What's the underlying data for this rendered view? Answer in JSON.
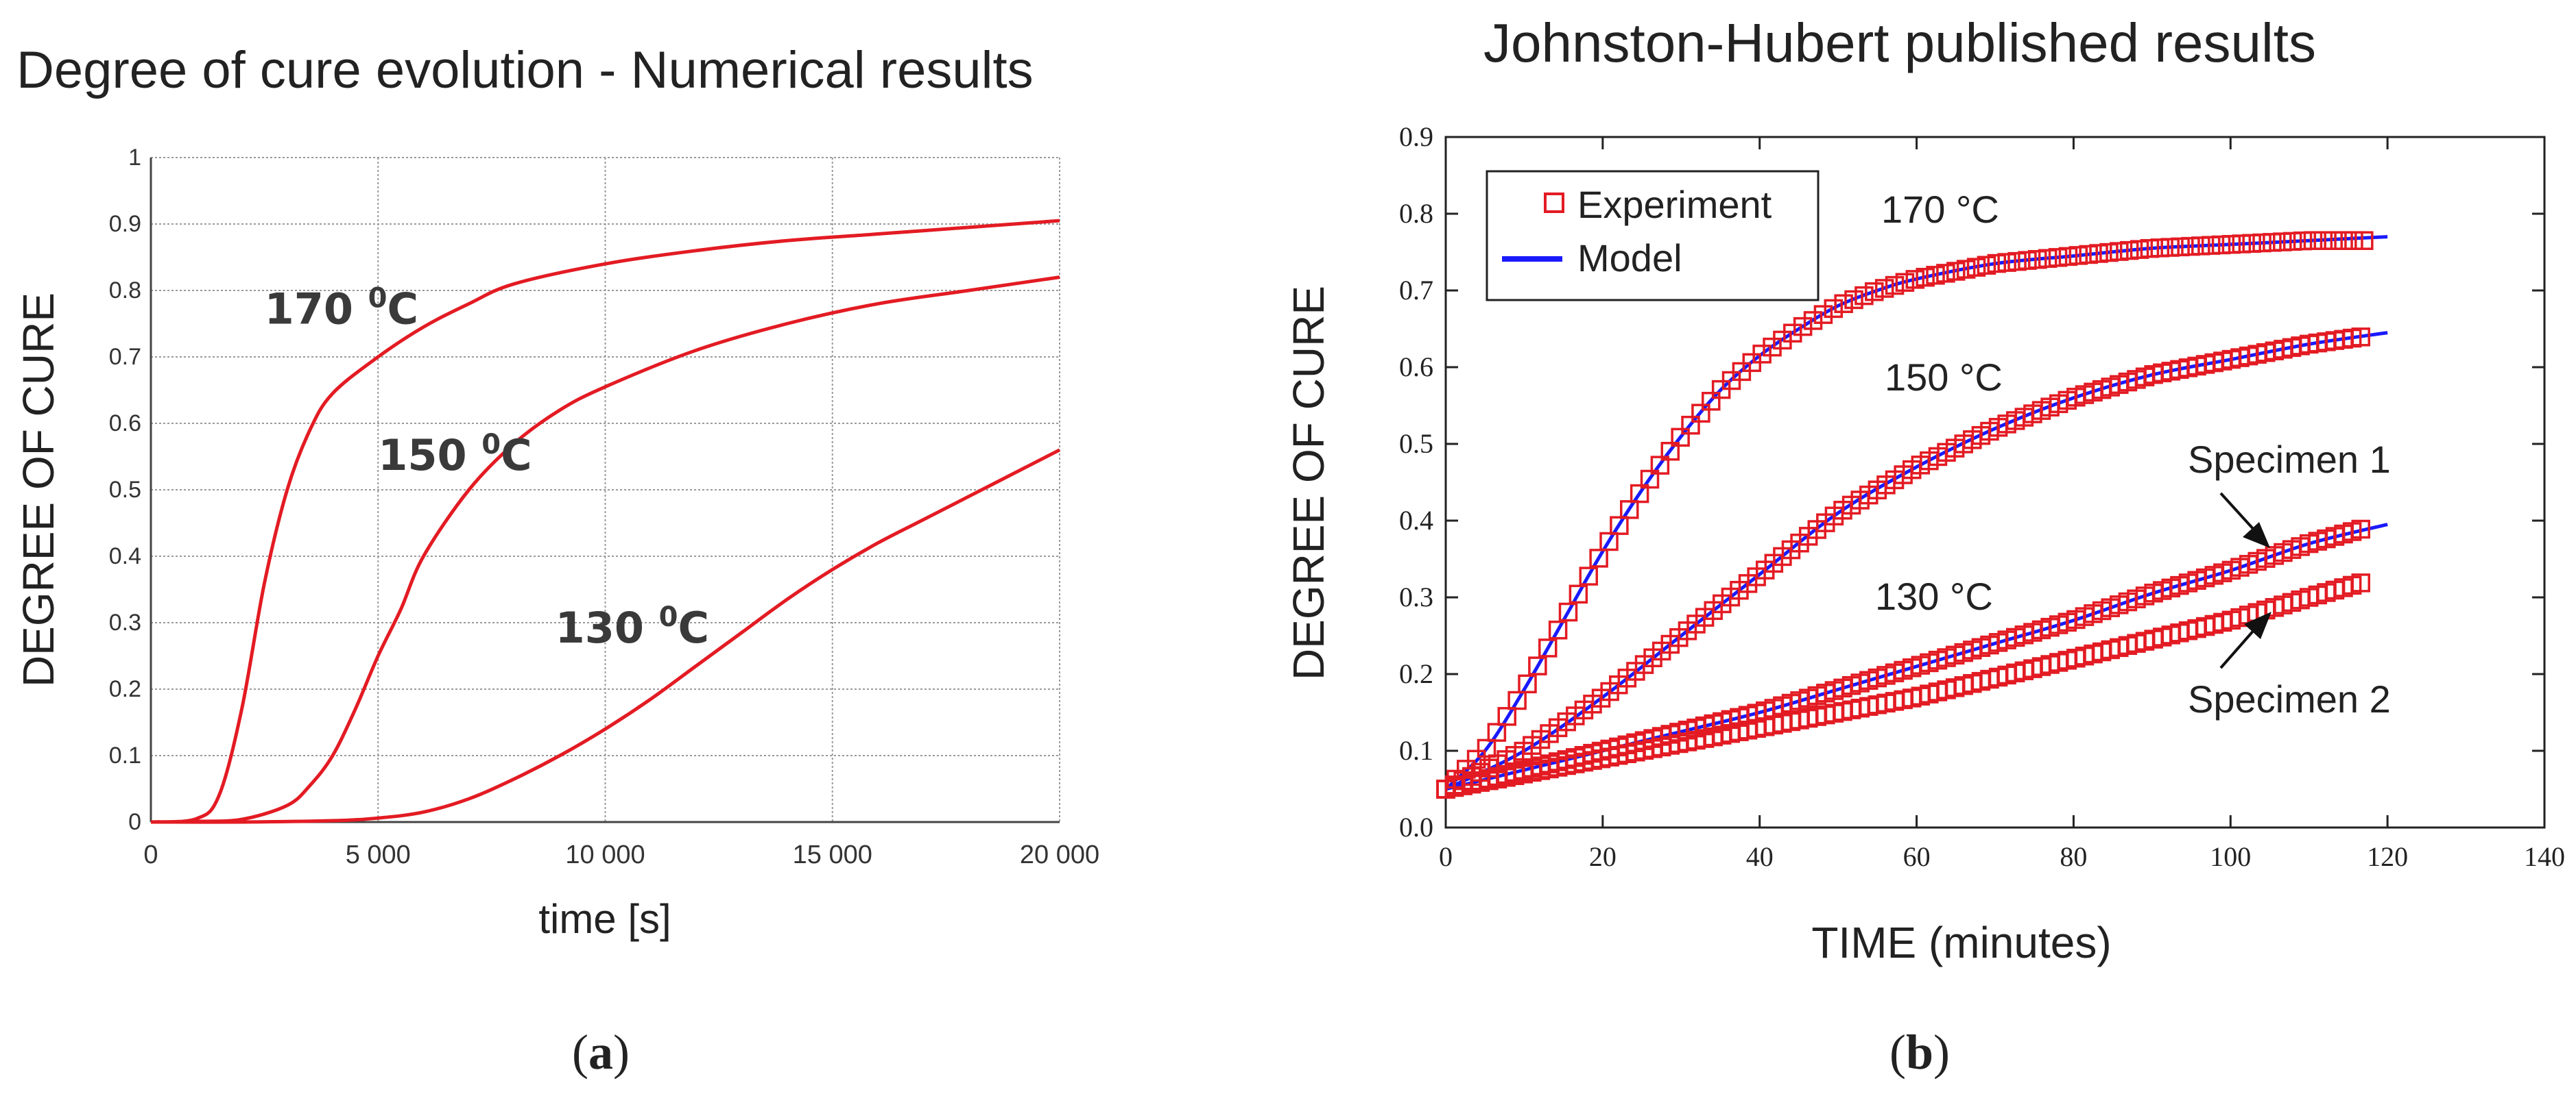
{
  "chart_data": [
    {
      "type": "line",
      "panel_label": "a",
      "title": "Degree of cure evolution - Numerical results",
      "xlabel": "time [s]",
      "ylabel": "DEGREE OF CURE",
      "xlim": [
        0,
        20000
      ],
      "ylim": [
        0,
        1
      ],
      "xticks": [
        0,
        5000,
        10000,
        15000,
        20000
      ],
      "xtick_labels": [
        "0",
        "5 000",
        "10 000",
        "15 000",
        "20 000"
      ],
      "yticks": [
        0,
        0.1,
        0.2,
        0.3,
        0.4,
        0.5,
        0.6,
        0.7,
        0.8,
        0.9,
        1
      ],
      "ytick_labels": [
        "0",
        "0.1",
        "0.2",
        "0.3",
        "0.4",
        "0.5",
        "0.6",
        "0.7",
        "0.8",
        "0.9",
        "1"
      ],
      "grid": true,
      "line_color": "#e31b23",
      "series": [
        {
          "name": "170 °C",
          "label_main": "170 ",
          "label_sup": "0",
          "label_end": "C",
          "x": [
            0,
            1000,
            1500,
            2000,
            2500,
            3000,
            3500,
            4000,
            5000,
            6000,
            7000,
            8000,
            10000,
            12000,
            14000,
            16000,
            18000,
            20000
          ],
          "y": [
            0,
            0.005,
            0.04,
            0.17,
            0.36,
            0.5,
            0.59,
            0.645,
            0.7,
            0.745,
            0.78,
            0.81,
            0.84,
            0.86,
            0.875,
            0.885,
            0.895,
            0.905
          ]
        },
        {
          "name": "150 °C",
          "label_main": "150 ",
          "label_sup": "0",
          "label_end": "C",
          "x": [
            0,
            1000,
            2000,
            3000,
            3500,
            4000,
            4500,
            5000,
            5500,
            6000,
            7000,
            8000,
            9000,
            10000,
            12000,
            14000,
            16000,
            18000,
            20000
          ],
          "y": [
            0,
            0.001,
            0.004,
            0.025,
            0.055,
            0.1,
            0.17,
            0.25,
            0.32,
            0.4,
            0.5,
            0.57,
            0.62,
            0.655,
            0.71,
            0.75,
            0.78,
            0.8,
            0.82
          ]
        },
        {
          "name": "130 °C",
          "label_main": "130 ",
          "label_sup": "0",
          "label_end": "C",
          "x": [
            0,
            2000,
            4000,
            5000,
            6000,
            7000,
            8000,
            9000,
            10000,
            11000,
            12000,
            13000,
            14000,
            15000,
            16000,
            17000,
            18000,
            19000,
            20000
          ],
          "y": [
            0,
            0,
            0.002,
            0.006,
            0.015,
            0.035,
            0.065,
            0.1,
            0.14,
            0.185,
            0.235,
            0.285,
            0.335,
            0.38,
            0.42,
            0.455,
            0.49,
            0.525,
            0.56
          ]
        }
      ]
    },
    {
      "type": "scatter",
      "panel_label": "b",
      "title": "Johnston-Hubert published results",
      "xlabel": "TIME (minutes)",
      "ylabel": "DEGREE OF CURE",
      "xlim": [
        0,
        140
      ],
      "ylim": [
        0,
        0.9
      ],
      "xticks": [
        0,
        20,
        40,
        60,
        80,
        100,
        120,
        140
      ],
      "xtick_labels": [
        "0",
        "20",
        "40",
        "60",
        "80",
        "100",
        "120",
        "140"
      ],
      "yticks": [
        0,
        0.1,
        0.2,
        0.3,
        0.4,
        0.5,
        0.6,
        0.7,
        0.8,
        0.9
      ],
      "ytick_labels": [
        "0.0",
        "0.1",
        "0.2",
        "0.3",
        "0.4",
        "0.5",
        "0.6",
        "0.7",
        "0.8",
        "0.9"
      ],
      "grid": false,
      "legend": {
        "position": "top-left",
        "entries": [
          "Experiment",
          "Model"
        ]
      },
      "experiment_color": "#e31b23",
      "model_color": "#1a1aff",
      "series": [
        {
          "name": "170 °C",
          "label": "170 °C",
          "x": [
            0,
            5,
            10,
            15,
            20,
            25,
            30,
            35,
            40,
            45,
            50,
            55,
            60,
            70,
            80,
            90,
            100,
            110,
            117
          ],
          "y": [
            0.05,
            0.1,
            0.18,
            0.27,
            0.36,
            0.44,
            0.51,
            0.57,
            0.615,
            0.65,
            0.68,
            0.7,
            0.715,
            0.735,
            0.745,
            0.755,
            0.76,
            0.765,
            0.765
          ]
        },
        {
          "name": "150 °C",
          "label": "150 °C",
          "x": [
            0,
            10,
            20,
            30,
            40,
            50,
            60,
            70,
            80,
            90,
            100,
            110,
            117
          ],
          "y": [
            0.05,
            0.1,
            0.17,
            0.25,
            0.33,
            0.41,
            0.47,
            0.52,
            0.56,
            0.59,
            0.61,
            0.63,
            0.64
          ]
        },
        {
          "name": "Specimen 1",
          "label": "Specimen 1",
          "x": [
            0,
            10,
            20,
            30,
            40,
            50,
            60,
            70,
            80,
            90,
            100,
            110,
            117
          ],
          "y": [
            0.05,
            0.075,
            0.1,
            0.125,
            0.15,
            0.18,
            0.21,
            0.24,
            0.27,
            0.305,
            0.335,
            0.37,
            0.39
          ]
        },
        {
          "name": "Specimen 2",
          "label": "Specimen 2",
          "x": [
            0,
            10,
            20,
            30,
            40,
            50,
            60,
            70,
            80,
            90,
            100,
            110,
            117
          ],
          "y": [
            0.05,
            0.07,
            0.09,
            0.11,
            0.13,
            0.15,
            0.17,
            0.195,
            0.22,
            0.245,
            0.27,
            0.3,
            0.32
          ]
        }
      ],
      "model_lines": [
        {
          "name": "170 °C model",
          "x": [
            0,
            5,
            10,
            15,
            20,
            25,
            30,
            35,
            40,
            45,
            50,
            55,
            60,
            70,
            80,
            90,
            100,
            110,
            120
          ],
          "y": [
            0.05,
            0.1,
            0.18,
            0.27,
            0.36,
            0.44,
            0.51,
            0.57,
            0.615,
            0.65,
            0.68,
            0.7,
            0.715,
            0.735,
            0.745,
            0.755,
            0.76,
            0.765,
            0.77
          ]
        },
        {
          "name": "150 °C model",
          "x": [
            0,
            10,
            20,
            30,
            40,
            50,
            60,
            70,
            80,
            90,
            100,
            110,
            120
          ],
          "y": [
            0.05,
            0.1,
            0.17,
            0.25,
            0.33,
            0.41,
            0.47,
            0.52,
            0.56,
            0.59,
            0.61,
            0.63,
            0.645
          ]
        },
        {
          "name": "130 °C model",
          "x": [
            0,
            10,
            20,
            30,
            40,
            50,
            60,
            70,
            80,
            90,
            100,
            110,
            120
          ],
          "y": [
            0.05,
            0.075,
            0.1,
            0.125,
            0.15,
            0.18,
            0.21,
            0.24,
            0.27,
            0.305,
            0.335,
            0.37,
            0.395
          ]
        }
      ],
      "annotations": [
        "130 °C"
      ]
    }
  ]
}
